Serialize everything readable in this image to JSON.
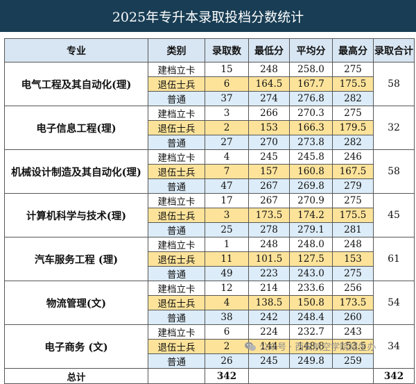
{
  "title": "2025年专升本录取投档分数统计",
  "headers": [
    "专业",
    "类别",
    "录取数",
    "最低分",
    "平均分",
    "最高分",
    "录取合计"
  ],
  "majors": [
    {
      "name": "电气工程及其自动化(理)",
      "total": "58",
      "rows": [
        {
          "cat": "建档立卡",
          "num": "15",
          "min": "248",
          "avg": "258.0",
          "max": "275"
        },
        {
          "cat": "退伍士兵",
          "num": "6",
          "min": "164.5",
          "avg": "167.7",
          "max": "175.5"
        },
        {
          "cat": "普通",
          "num": "37",
          "min": "274",
          "avg": "276.8",
          "max": "282"
        }
      ]
    },
    {
      "name": "电子信息工程(理)",
      "total": "32",
      "rows": [
        {
          "cat": "建档立卡",
          "num": "3",
          "min": "266",
          "avg": "270.3",
          "max": "275"
        },
        {
          "cat": "退伍士兵",
          "num": "2",
          "min": "153",
          "avg": "166.3",
          "max": "179.5"
        },
        {
          "cat": "普通",
          "num": "27",
          "min": "270",
          "avg": "273.8",
          "max": "282"
        }
      ]
    },
    {
      "name": "机械设计制造及其自动化(理)",
      "total": "58",
      "rows": [
        {
          "cat": "建档立卡",
          "num": "4",
          "min": "245",
          "avg": "245.8",
          "max": "246"
        },
        {
          "cat": "退伍士兵",
          "num": "7",
          "min": "157",
          "avg": "160.8",
          "max": "167.5"
        },
        {
          "cat": "普通",
          "num": "47",
          "min": "267",
          "avg": "269.8",
          "max": "279"
        }
      ]
    },
    {
      "name": "计算机科学与技术(理)",
      "total": "45",
      "rows": [
        {
          "cat": "建档立卡",
          "num": "17",
          "min": "267",
          "avg": "270.9",
          "max": "275"
        },
        {
          "cat": "退伍士兵",
          "num": "3",
          "min": "173.5",
          "avg": "174.2",
          "max": "175.5"
        },
        {
          "cat": "普通",
          "num": "25",
          "min": "278",
          "avg": "279.1",
          "max": "281"
        }
      ]
    },
    {
      "name": "汽车服务工程 (理)",
      "total": "61",
      "rows": [
        {
          "cat": "建档立卡",
          "num": "1",
          "min": "248",
          "avg": "248.0",
          "max": "248"
        },
        {
          "cat": "退伍士兵",
          "num": "11",
          "min": "101.5",
          "avg": "127.5",
          "max": "153"
        },
        {
          "cat": "普通",
          "num": "49",
          "min": "223",
          "avg": "243.0",
          "max": "275"
        }
      ]
    },
    {
      "name": "物流管理(文)",
      "total": "54",
      "rows": [
        {
          "cat": "建档立卡",
          "num": "12",
          "min": "214",
          "avg": "233.6",
          "max": "256"
        },
        {
          "cat": "退伍士兵",
          "num": "4",
          "min": "138.5",
          "avg": "150.8",
          "max": "173.5"
        },
        {
          "cat": "普通",
          "num": "38",
          "min": "242",
          "avg": "248.4",
          "max": "260"
        }
      ]
    },
    {
      "name": "电子商务 (文)",
      "total": "34",
      "rows": [
        {
          "cat": "建档立卡",
          "num": "6",
          "min": "224",
          "avg": "232.7",
          "max": "243"
        },
        {
          "cat": "退伍士兵",
          "num": "2",
          "min": "144",
          "avg": "148.8",
          "max": "153.5"
        },
        {
          "cat": "普通",
          "num": "26",
          "min": "245",
          "avg": "249.8",
          "max": "259"
        }
      ]
    }
  ],
  "total": {
    "label": "总计",
    "num": "342",
    "sum": "342"
  },
  "watermark": "公众号 · 西安航空学院招生办"
}
